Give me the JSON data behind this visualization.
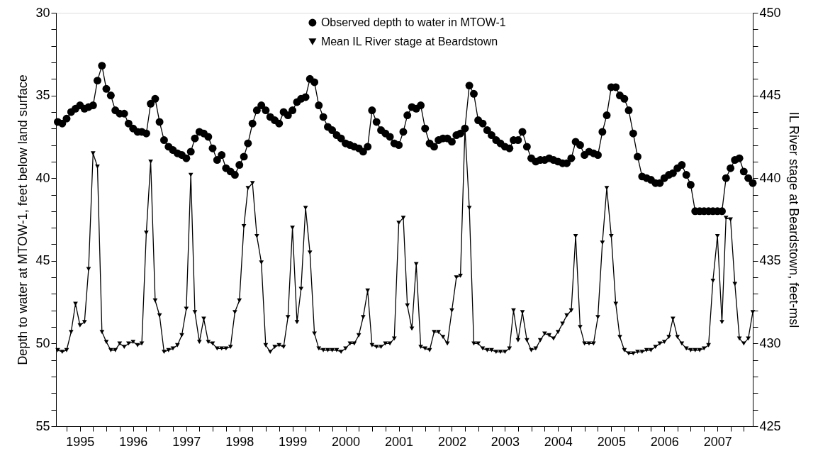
{
  "chart_data": {
    "type": "line",
    "ylabel": "Depth to water at MTOW-1, feet below land surface",
    "y2label": "IL River stage at Beardstown, feet-msl",
    "legend": "top",
    "line_style": "solid",
    "xlim": [
      "1994-07-20",
      "2007-09-01"
    ],
    "xticks": [
      {
        "value": "1994-10-01",
        "label": null
      },
      {
        "value": "1995-01-01",
        "label": "1995"
      },
      {
        "value": "1995-04-01",
        "label": null
      },
      {
        "value": "1995-07-01",
        "label": null
      },
      {
        "value": "1995-10-01",
        "label": null
      },
      {
        "value": "1996-01-01",
        "label": "1996"
      },
      {
        "value": "1996-04-01",
        "label": null
      },
      {
        "value": "1996-07-01",
        "label": null
      },
      {
        "value": "1996-10-01",
        "label": null
      },
      {
        "value": "1997-01-01",
        "label": "1997"
      },
      {
        "value": "1997-04-01",
        "label": null
      },
      {
        "value": "1997-07-01",
        "label": null
      },
      {
        "value": "1997-10-01",
        "label": null
      },
      {
        "value": "1998-01-01",
        "label": "1998"
      },
      {
        "value": "1998-04-01",
        "label": null
      },
      {
        "value": "1998-07-01",
        "label": null
      },
      {
        "value": "1998-10-01",
        "label": null
      },
      {
        "value": "1999-01-01",
        "label": "1999"
      },
      {
        "value": "1999-04-01",
        "label": null
      },
      {
        "value": "1999-07-01",
        "label": null
      },
      {
        "value": "1999-10-01",
        "label": null
      },
      {
        "value": "2000-01-01",
        "label": "2000"
      },
      {
        "value": "2000-04-01",
        "label": null
      },
      {
        "value": "2000-07-01",
        "label": null
      },
      {
        "value": "2000-10-01",
        "label": null
      },
      {
        "value": "2001-01-01",
        "label": "2001"
      },
      {
        "value": "2001-04-01",
        "label": null
      },
      {
        "value": "2001-07-01",
        "label": null
      },
      {
        "value": "2001-10-01",
        "label": null
      },
      {
        "value": "2002-01-01",
        "label": "2002"
      },
      {
        "value": "2002-04-01",
        "label": null
      },
      {
        "value": "2002-07-01",
        "label": null
      },
      {
        "value": "2002-10-01",
        "label": null
      },
      {
        "value": "2003-01-01",
        "label": "2003"
      },
      {
        "value": "2003-04-01",
        "label": null
      },
      {
        "value": "2003-07-01",
        "label": null
      },
      {
        "value": "2003-10-01",
        "label": null
      },
      {
        "value": "2004-01-01",
        "label": "2004"
      },
      {
        "value": "2004-04-01",
        "label": null
      },
      {
        "value": "2004-07-01",
        "label": null
      },
      {
        "value": "2004-10-01",
        "label": null
      },
      {
        "value": "2005-01-01",
        "label": "2005"
      },
      {
        "value": "2005-04-01",
        "label": null
      },
      {
        "value": "2005-07-01",
        "label": null
      },
      {
        "value": "2005-10-01",
        "label": null
      },
      {
        "value": "2006-01-01",
        "label": "2006"
      },
      {
        "value": "2006-04-01",
        "label": null
      },
      {
        "value": "2006-07-01",
        "label": null
      },
      {
        "value": "2006-10-01",
        "label": null
      },
      {
        "value": "2007-01-01",
        "label": "2007"
      },
      {
        "value": "2007-04-01",
        "label": null
      },
      {
        "value": "2007-07-01",
        "label": null
      }
    ],
    "ylim": [
      55,
      30
    ],
    "yticks": [
      30,
      {
        "value": 31,
        "label": null
      },
      {
        "value": 32,
        "label": null
      },
      {
        "value": 33,
        "label": null
      },
      {
        "value": 34,
        "label": null
      },
      35,
      {
        "value": 36,
        "label": null
      },
      {
        "value": 37,
        "label": null
      },
      {
        "value": 38,
        "label": null
      },
      {
        "value": 39,
        "label": null
      },
      40,
      {
        "value": 41,
        "label": null
      },
      {
        "value": 42,
        "label": null
      },
      {
        "value": 43,
        "label": null
      },
      {
        "value": 44,
        "label": null
      },
      45,
      {
        "value": 46,
        "label": null
      },
      {
        "value": 47,
        "label": null
      },
      {
        "value": 48,
        "label": null
      },
      {
        "value": 49,
        "label": null
      },
      50,
      {
        "value": 51,
        "label": null
      },
      {
        "value": 52,
        "label": null
      },
      {
        "value": 53,
        "label": null
      },
      {
        "value": 54,
        "label": null
      },
      55
    ],
    "y2lim": [
      425,
      450
    ],
    "y2ticks": [
      425,
      {
        "value": 426,
        "label": null
      },
      {
        "value": 427,
        "label": null
      },
      {
        "value": 428,
        "label": null
      },
      {
        "value": 429,
        "label": null
      },
      430,
      {
        "value": 431,
        "label": null
      },
      {
        "value": 432,
        "label": null
      },
      {
        "value": 433,
        "label": null
      },
      {
        "value": 434,
        "label": null
      },
      435,
      {
        "value": 436,
        "label": null
      },
      {
        "value": 437,
        "label": null
      },
      {
        "value": 438,
        "label": null
      },
      {
        "value": 439,
        "label": null
      },
      440,
      {
        "value": 441,
        "label": null
      },
      {
        "value": 442,
        "label": null
      },
      {
        "value": 443,
        "label": null
      },
      {
        "value": 444,
        "label": null
      },
      445,
      {
        "value": 446,
        "label": null
      },
      {
        "value": 447,
        "label": null
      },
      {
        "value": 448,
        "label": null
      },
      {
        "value": 449,
        "label": null
      },
      450
    ],
    "x": [
      "1994-08",
      "1994-09",
      "1994-10",
      "1994-11",
      "1994-12",
      "1995-01",
      "1995-02",
      "1995-03",
      "1995-04",
      "1995-05",
      "1995-06",
      "1995-07",
      "1995-08",
      "1995-09",
      "1995-10",
      "1995-11",
      "1995-12",
      "1996-01",
      "1996-02",
      "1996-03",
      "1996-04",
      "1996-05",
      "1996-06",
      "1996-07",
      "1996-08",
      "1996-09",
      "1996-10",
      "1996-11",
      "1996-12",
      "1997-01",
      "1997-02",
      "1997-03",
      "1997-04",
      "1997-05",
      "1997-06",
      "1997-07",
      "1997-08",
      "1997-09",
      "1997-10",
      "1997-11",
      "1997-12",
      "1998-01",
      "1998-02",
      "1998-03",
      "1998-04",
      "1998-05",
      "1998-06",
      "1998-07",
      "1998-08",
      "1998-09",
      "1998-10",
      "1998-11",
      "1998-12",
      "1999-01",
      "1999-02",
      "1999-03",
      "1999-04",
      "1999-05",
      "1999-06",
      "1999-07",
      "1999-08",
      "1999-09",
      "1999-10",
      "1999-11",
      "1999-12",
      "2000-01",
      "2000-02",
      "2000-03",
      "2000-04",
      "2000-05",
      "2000-06",
      "2000-07",
      "2000-08",
      "2000-09",
      "2000-10",
      "2000-11",
      "2000-12",
      "2001-01",
      "2001-02",
      "2001-03",
      "2001-04",
      "2001-05",
      "2001-06",
      "2001-07",
      "2001-08",
      "2001-09",
      "2001-10",
      "2001-11",
      "2001-12",
      "2002-01",
      "2002-02",
      "2002-03",
      "2002-04",
      "2002-05",
      "2002-06",
      "2002-07",
      "2002-08",
      "2002-09",
      "2002-10",
      "2002-11",
      "2002-12",
      "2003-01",
      "2003-02",
      "2003-03",
      "2003-04",
      "2003-05",
      "2003-06",
      "2003-07",
      "2003-08",
      "2003-09",
      "2003-10",
      "2003-11",
      "2003-12",
      "2004-01",
      "2004-02",
      "2004-03",
      "2004-04",
      "2004-05",
      "2004-06",
      "2004-07",
      "2004-08",
      "2004-09",
      "2004-10",
      "2004-11",
      "2004-12",
      "2005-01",
      "2005-02",
      "2005-03",
      "2005-04",
      "2005-05",
      "2005-06",
      "2005-07",
      "2005-08",
      "2005-09",
      "2005-10",
      "2005-11",
      "2005-12",
      "2006-01",
      "2006-02",
      "2006-03",
      "2006-04",
      "2006-05",
      "2006-06",
      "2006-07",
      "2006-08",
      "2006-09",
      "2006-10",
      "2006-11",
      "2006-12",
      "2007-01",
      "2007-02",
      "2007-03",
      "2007-04",
      "2007-05",
      "2007-06",
      "2007-07",
      "2007-08",
      "2007-09"
    ],
    "series": [
      {
        "name": "Observed depth to water in MTOW-1",
        "color": "#000000",
        "marker": "circle",
        "axis": "y",
        "values": [
          36.6,
          36.7,
          36.4,
          36.0,
          35.8,
          35.6,
          35.8,
          35.7,
          35.6,
          34.1,
          33.2,
          34.6,
          35.0,
          35.9,
          36.1,
          36.1,
          36.7,
          37.0,
          37.2,
          37.2,
          37.3,
          35.5,
          35.2,
          36.6,
          37.7,
          38.1,
          38.3,
          38.5,
          38.6,
          38.8,
          38.4,
          37.6,
          37.2,
          37.3,
          37.5,
          38.2,
          38.9,
          38.6,
          39.4,
          39.6,
          39.8,
          39.2,
          38.7,
          37.9,
          36.7,
          35.9,
          35.6,
          35.9,
          36.3,
          36.5,
          36.7,
          36.0,
          36.2,
          35.9,
          35.4,
          35.2,
          35.1,
          34.0,
          34.2,
          35.6,
          36.3,
          36.9,
          37.1,
          37.4,
          37.6,
          37.9,
          38.0,
          38.1,
          38.2,
          38.4,
          38.1,
          35.9,
          36.6,
          37.1,
          37.3,
          37.5,
          37.9,
          38.0,
          37.2,
          36.2,
          35.7,
          35.8,
          35.6,
          37.0,
          37.9,
          38.1,
          37.7,
          37.6,
          37.6,
          37.8,
          37.4,
          37.3,
          37.0,
          34.4,
          34.9,
          36.5,
          36.7,
          37.1,
          37.4,
          37.7,
          37.9,
          38.1,
          38.2,
          37.7,
          37.7,
          37.2,
          38.1,
          38.8,
          39.0,
          38.9,
          38.9,
          38.8,
          38.9,
          39.0,
          39.1,
          39.1,
          38.8,
          37.8,
          38.0,
          38.6,
          38.4,
          38.5,
          38.6,
          37.2,
          36.2,
          34.5,
          34.5,
          35.0,
          35.2,
          35.9,
          37.3,
          38.7,
          39.9,
          40.0,
          40.1,
          40.3,
          40.3,
          40.0,
          39.8,
          39.7,
          39.4,
          39.2,
          39.8,
          40.4,
          42.0,
          42.0,
          42.0,
          42.0,
          42.0,
          42.0,
          42.0,
          40.0,
          39.4,
          38.9,
          38.8,
          39.6,
          40.0,
          40.3
        ]
      },
      {
        "name": "Mean IL River stage at Beardstown",
        "color": "#000000",
        "marker": "triangle",
        "axis": "y2",
        "values": [
          429.6,
          429.5,
          429.6,
          430.7,
          432.4,
          431.1,
          431.3,
          434.5,
          441.5,
          440.7,
          430.7,
          430.1,
          429.6,
          429.6,
          430.0,
          429.8,
          430.0,
          430.1,
          429.9,
          430.0,
          436.7,
          441.0,
          432.6,
          431.7,
          429.5,
          429.6,
          429.7,
          429.9,
          430.5,
          432.1,
          440.2,
          431.9,
          430.1,
          431.5,
          430.1,
          430.0,
          429.7,
          429.7,
          429.7,
          429.8,
          431.9,
          432.6,
          437.1,
          439.4,
          439.7,
          436.5,
          434.9,
          429.9,
          429.5,
          429.8,
          429.9,
          429.8,
          431.6,
          437.0,
          431.3,
          433.3,
          438.2,
          435.5,
          430.6,
          429.7,
          429.6,
          429.6,
          429.6,
          429.6,
          429.5,
          429.7,
          430.0,
          430.0,
          430.5,
          431.6,
          433.2,
          429.9,
          429.8,
          429.8,
          430.0,
          430.0,
          430.3,
          437.3,
          437.6,
          432.3,
          430.9,
          434.8,
          429.8,
          429.7,
          429.6,
          430.7,
          430.7,
          430.4,
          430.0,
          432.0,
          434.0,
          434.1,
          443.0,
          438.2,
          430.0,
          430.0,
          429.7,
          429.6,
          429.6,
          429.5,
          429.5,
          429.5,
          429.7,
          432.0,
          430.2,
          431.9,
          430.2,
          429.6,
          429.7,
          430.2,
          430.6,
          430.5,
          430.3,
          430.7,
          431.2,
          431.7,
          432.0,
          436.5,
          431.0,
          430.0,
          430.0,
          430.0,
          431.6,
          436.1,
          439.4,
          436.5,
          432.4,
          430.4,
          429.6,
          429.4,
          429.4,
          429.5,
          429.5,
          429.6,
          429.6,
          429.8,
          430.0,
          430.1,
          430.4,
          431.5,
          430.4,
          430.0,
          429.7,
          429.6,
          429.6,
          429.6,
          429.7,
          429.9,
          433.8,
          436.5,
          431.3,
          437.6,
          437.5,
          433.6,
          430.3,
          430.0,
          430.3,
          431.9
        ]
      }
    ]
  }
}
